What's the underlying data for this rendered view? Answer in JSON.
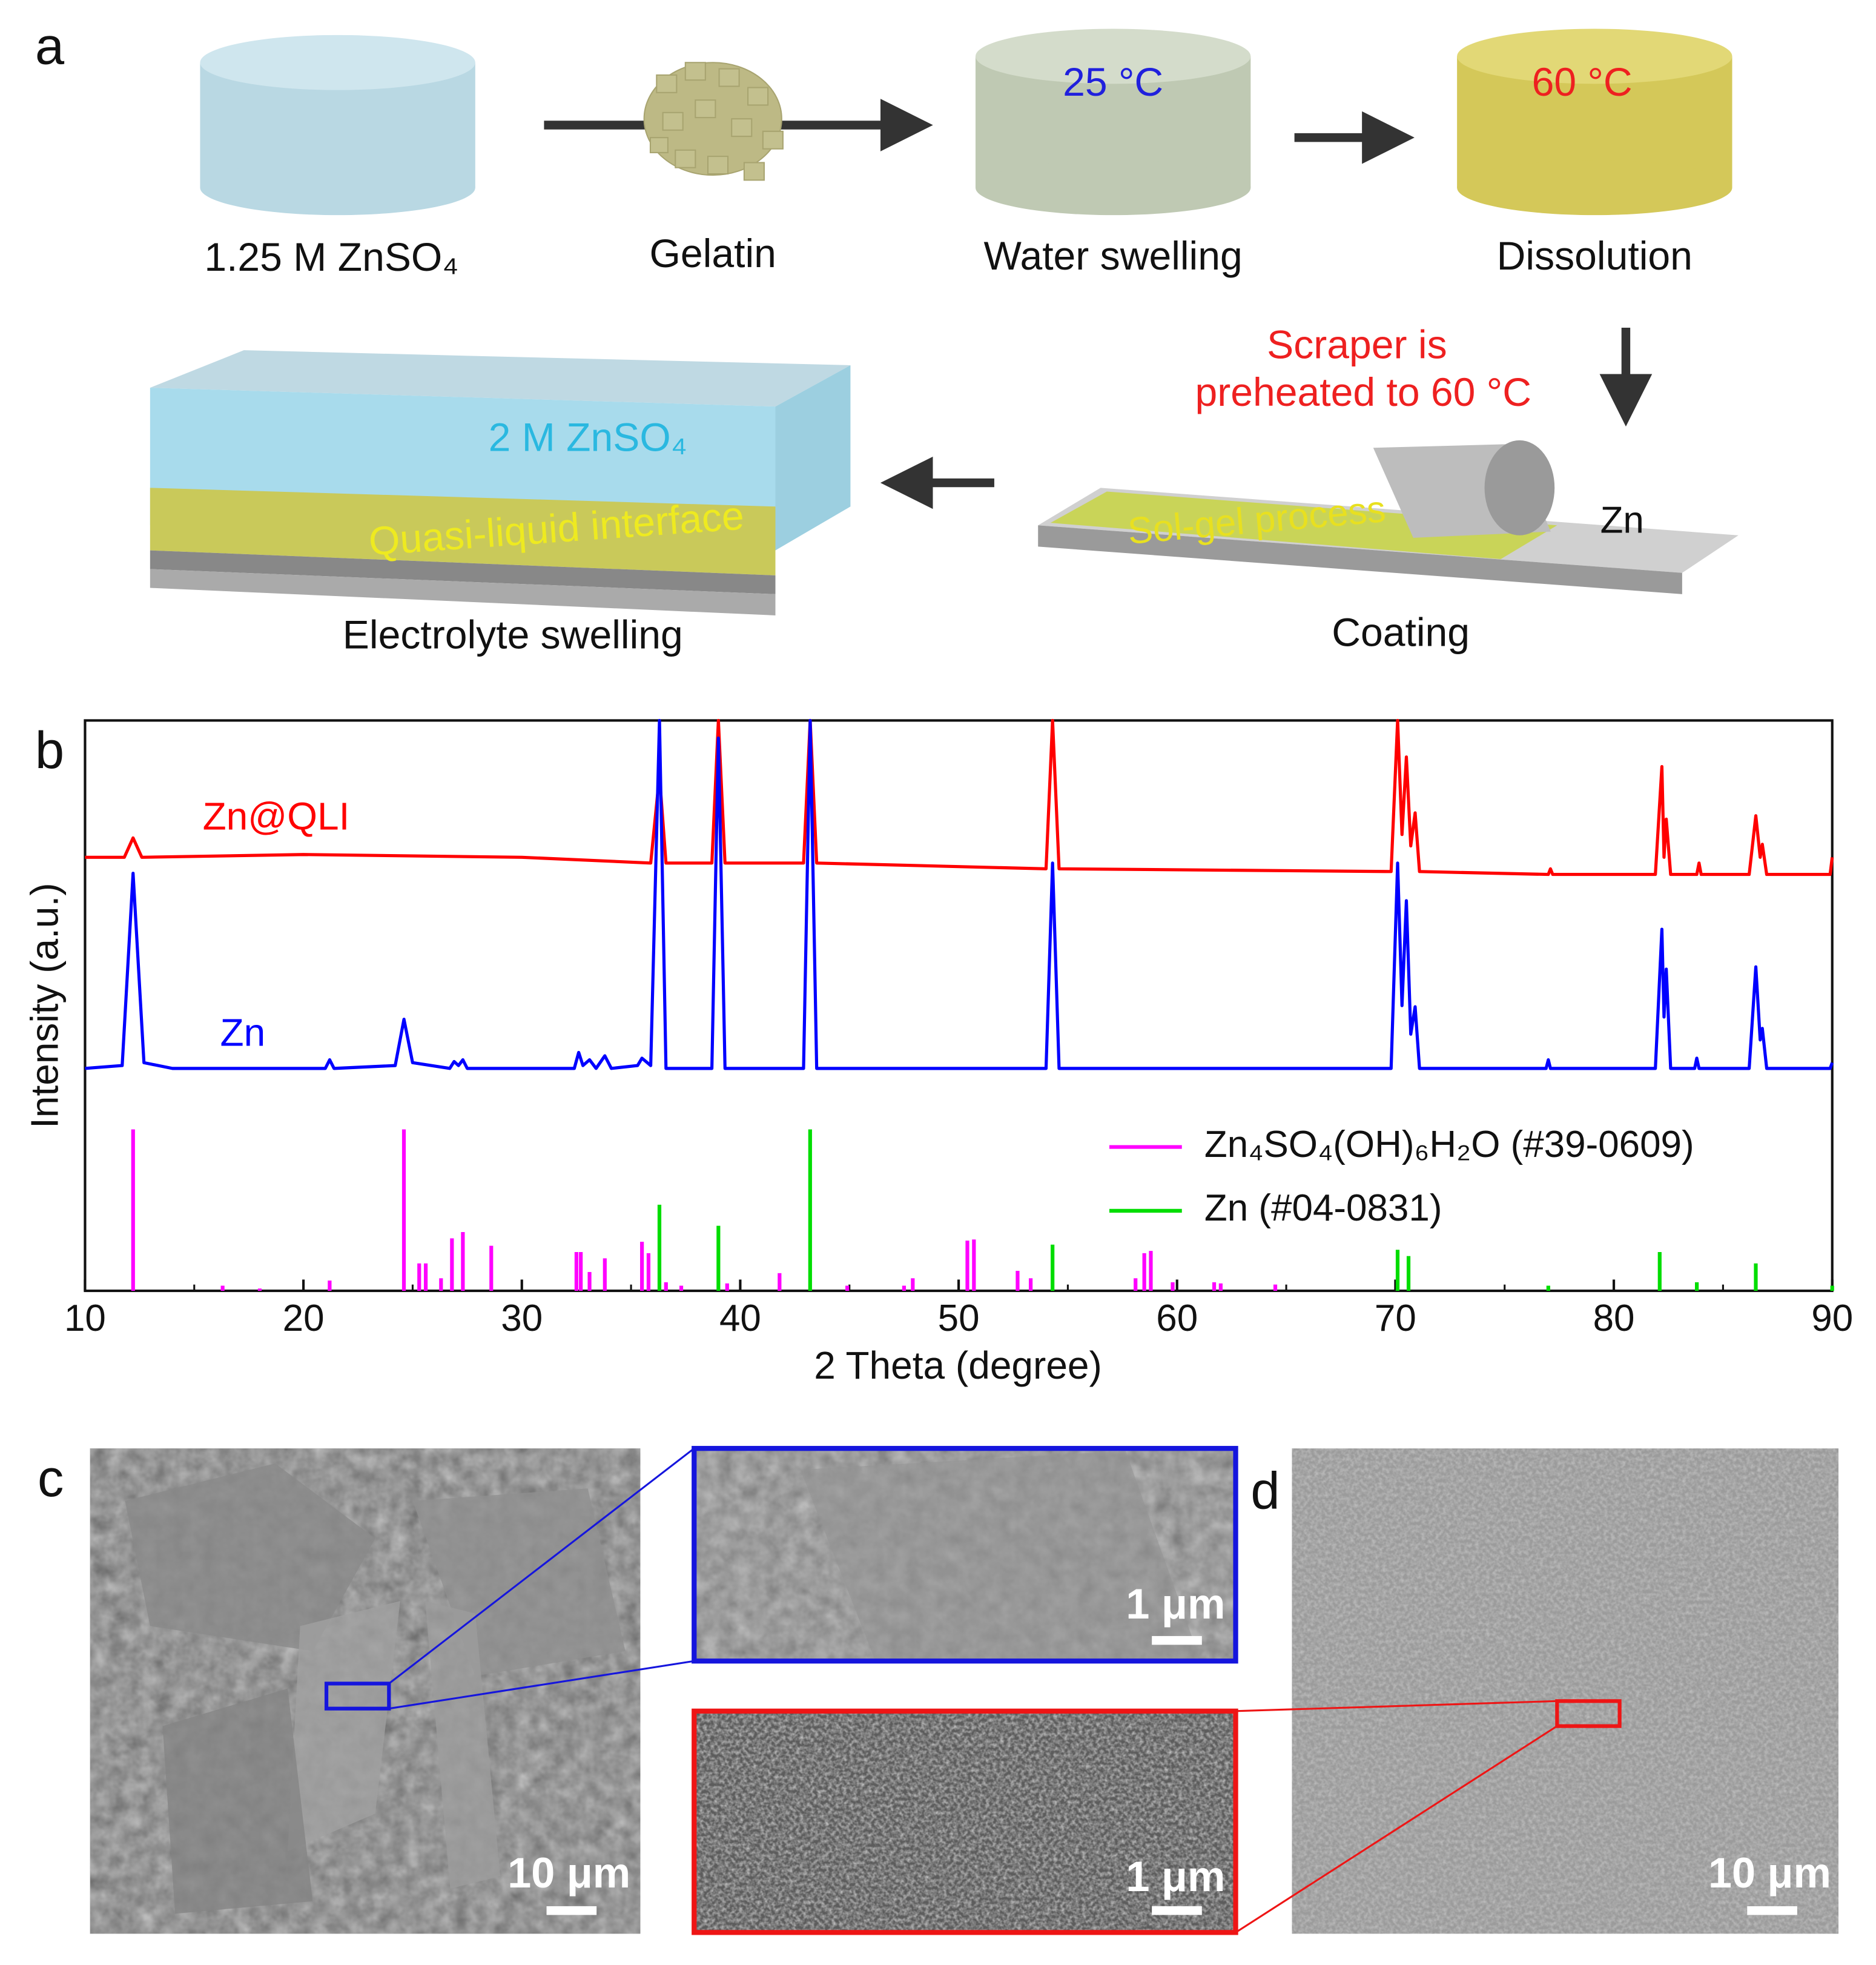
{
  "panel_a": {
    "label": "a",
    "liquid": "1.25 M ZnSO₄",
    "gelatin": "Gelatin",
    "swelling": "Water swelling",
    "swelling_temp": "25 °C",
    "dissolution": "Dissolution",
    "dissolution_temp": "60 °C",
    "scraper_note": [
      "Scraper is",
      "preheated to 60 °C"
    ],
    "substrate": "Zn",
    "coating_layer": "Sol-gel process",
    "coating": "Coating",
    "electrolyte": "2 M ZnSO₄",
    "interface": "Quasi-liquid interface",
    "result": "Electrolyte swelling"
  },
  "chart_data": {
    "type": "line",
    "panel_label": "b",
    "x_label": "2 Theta (degree)",
    "y_label": "Intensity (a.u.)",
    "xlim": [
      10,
      90
    ],
    "xticks": [
      10,
      20,
      30,
      40,
      50,
      60,
      70,
      80,
      90
    ],
    "xminorticks": [
      15,
      25,
      35,
      45,
      55,
      65,
      75,
      85
    ],
    "ylim": [
      0,
      100
    ],
    "series": [
      {
        "name": "Zn@QLI",
        "color": "#ff0000",
        "kind": "line",
        "x": [
          10,
          11.8,
          12.2,
          12.6,
          20,
          30,
          35.9,
          36.3,
          36.6,
          38.7,
          39.0,
          39.3,
          42.9,
          43.2,
          43.5,
          54.0,
          54.3,
          54.6,
          69.8,
          70.1,
          70.3,
          70.5,
          70.7,
          70.9,
          71.1,
          77.0,
          77.1,
          77.2,
          81.9,
          82.2,
          82.3,
          82.4,
          82.6,
          83.8,
          83.9,
          84.0,
          86.2,
          86.5,
          86.7,
          86.8,
          87.0,
          89.9,
          90
        ],
        "values": [
          76,
          76,
          79.4,
          76,
          76.5,
          76,
          75,
          90.4,
          75,
          75,
          100,
          75,
          75,
          100,
          75,
          74,
          100,
          74,
          73.5,
          100,
          80,
          93.6,
          78,
          83.8,
          73.5,
          73,
          74,
          73,
          73,
          91.9,
          76,
          82.7,
          73,
          73,
          75,
          73,
          73,
          83.3,
          76,
          78.3,
          73,
          73,
          76
        ]
      },
      {
        "name": "Zn",
        "color": "#0000ff",
        "kind": "line",
        "x": [
          10,
          11.7,
          12.2,
          12.7,
          14,
          21,
          21.2,
          21.4,
          24.2,
          24.6,
          25.0,
          26.7,
          26.9,
          27.1,
          27.3,
          27.5,
          32.4,
          32.6,
          32.8,
          33.1,
          33.4,
          33.8,
          34.1,
          35.3,
          35.5,
          35.9,
          36.3,
          36.6,
          38.7,
          39.0,
          39.3,
          42.9,
          43.2,
          43.5,
          54.0,
          54.3,
          54.6,
          69.8,
          70.1,
          70.3,
          70.5,
          70.7,
          70.9,
          71.1,
          76.9,
          77.0,
          77.1,
          81.9,
          82.2,
          82.3,
          82.4,
          82.6,
          83.7,
          83.8,
          83.9,
          86.2,
          86.5,
          86.7,
          86.8,
          87.0,
          89.9,
          90
        ],
        "values": [
          39,
          39.5,
          73.2,
          40,
          39,
          39,
          40.5,
          39,
          39.5,
          47.6,
          40,
          39,
          40.2,
          39.5,
          40.5,
          39,
          39,
          41.8,
          39.5,
          40.5,
          39,
          41.2,
          39,
          39.5,
          40.8,
          39.5,
          100,
          39,
          39,
          96.9,
          39,
          39,
          100,
          39,
          39,
          75,
          39,
          39,
          75,
          50,
          68.4,
          45,
          49.8,
          39,
          39,
          40.5,
          39,
          39,
          63.4,
          48,
          56.4,
          39,
          39,
          40.8,
          39,
          39,
          56.8,
          44,
          46,
          39,
          39,
          40
        ]
      },
      {
        "name": "Zn₄SO₄(OH)₆H₂O (#39-0609)",
        "color": "#ff00ff",
        "kind": "stick",
        "x": [
          12.2,
          16.3,
          18.0,
          21.2,
          24.6,
          25.3,
          25.6,
          26.3,
          26.8,
          27.3,
          28.6,
          32.5,
          32.7,
          33.1,
          33.8,
          35.5,
          35.8,
          36.6,
          37.3,
          39.4,
          41.8,
          44.9,
          47.5,
          47.9,
          50.4,
          50.7,
          52.7,
          53.3,
          58.1,
          58.5,
          58.8,
          59.8,
          61.7,
          62.0,
          64.5
        ],
        "values": [
          28.3,
          0.9,
          0.4,
          1.8,
          28.3,
          4.8,
          4.8,
          2.2,
          9.2,
          10.3,
          7.9,
          6.8,
          6.8,
          3.3,
          5.7,
          8.6,
          6.6,
          1.5,
          0.9,
          1.3,
          3.1,
          0.9,
          0.9,
          2.2,
          8.8,
          9.0,
          3.5,
          2.2,
          2.2,
          6.6,
          7.0,
          1.5,
          1.5,
          1.3,
          1.1
        ]
      },
      {
        "name": "Zn (#04-0831)",
        "color": "#00dd00",
        "kind": "stick",
        "x": [
          36.3,
          39.0,
          43.2,
          54.3,
          70.1,
          70.6,
          77.0,
          82.1,
          83.8,
          86.5,
          90
        ],
        "values": [
          15.1,
          11.4,
          28.3,
          8.1,
          7.2,
          6.1,
          0.9,
          6.8,
          1.5,
          4.8,
          0.9
        ]
      }
    ]
  },
  "panel_c": {
    "label": "c",
    "scale_main": "10 μm",
    "scale_top": "1 μm",
    "scale_bottom": "1 μm"
  },
  "panel_d": {
    "label": "d",
    "scale": "10 μm"
  }
}
